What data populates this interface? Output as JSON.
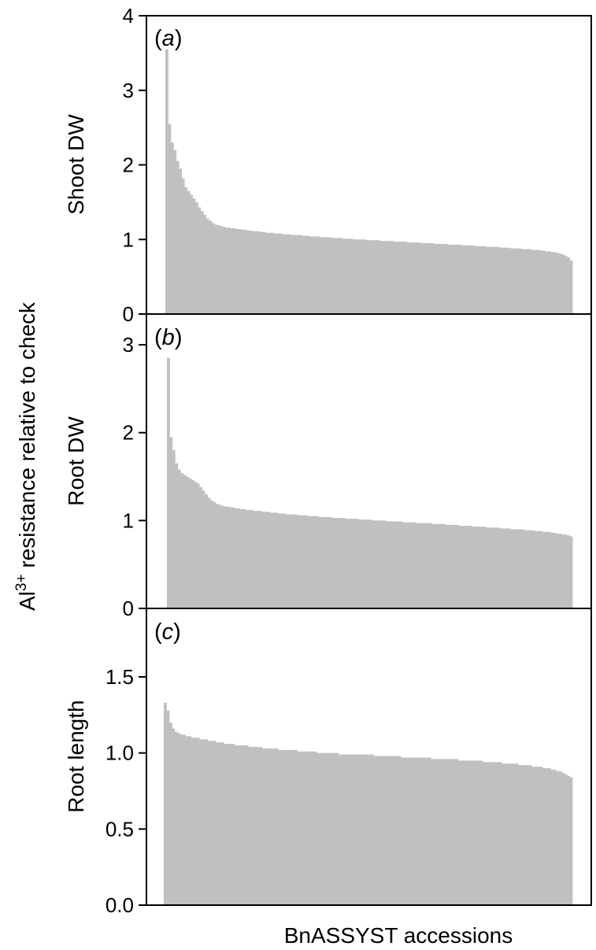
{
  "figure": {
    "shared_ylabel_main": "Al",
    "shared_ylabel_sup": "3+",
    "shared_ylabel_rest": " resistance relative to check",
    "shared_xlabel": "BnASSYST accessions"
  },
  "chart_data": [
    {
      "type": "bar",
      "panel_letter": "a",
      "ylabel": "Shoot DW",
      "ylim": [
        0,
        4
      ],
      "yticks": [
        "0",
        "1",
        "2",
        "3",
        "4"
      ],
      "ytick_values": [
        0,
        1,
        2,
        3,
        4
      ],
      "bar_color": "#c0c0c0",
      "n_accessions": 150,
      "values": [
        3.55,
        2.55,
        2.3,
        2.2,
        2.05,
        1.95,
        1.82,
        1.7,
        1.65,
        1.6,
        1.55,
        1.5,
        1.43,
        1.38,
        1.33,
        1.28,
        1.25,
        1.22,
        1.2,
        1.19,
        1.18,
        1.17,
        1.16,
        1.16,
        1.15,
        1.15,
        1.14,
        1.14,
        1.13,
        1.13,
        1.12,
        1.12,
        1.11,
        1.11,
        1.11,
        1.1,
        1.1,
        1.09,
        1.09,
        1.09,
        1.08,
        1.08,
        1.08,
        1.07,
        1.07,
        1.07,
        1.06,
        1.06,
        1.06,
        1.06,
        1.05,
        1.05,
        1.05,
        1.04,
        1.04,
        1.04,
        1.04,
        1.03,
        1.03,
        1.03,
        1.03,
        1.02,
        1.02,
        1.02,
        1.02,
        1.01,
        1.01,
        1.01,
        1.01,
        1.0,
        1.0,
        1.0,
        1.0,
        1.0,
        0.99,
        0.99,
        0.99,
        0.99,
        0.99,
        0.98,
        0.98,
        0.98,
        0.98,
        0.98,
        0.97,
        0.97,
        0.97,
        0.97,
        0.97,
        0.96,
        0.96,
        0.96,
        0.96,
        0.96,
        0.95,
        0.95,
        0.95,
        0.95,
        0.95,
        0.94,
        0.94,
        0.94,
        0.94,
        0.94,
        0.93,
        0.93,
        0.93,
        0.93,
        0.93,
        0.92,
        0.92,
        0.92,
        0.92,
        0.92,
        0.91,
        0.91,
        0.91,
        0.91,
        0.9,
        0.9,
        0.9,
        0.9,
        0.9,
        0.89,
        0.89,
        0.89,
        0.89,
        0.88,
        0.88,
        0.88,
        0.88,
        0.87,
        0.87,
        0.87,
        0.87,
        0.86,
        0.86,
        0.86,
        0.85,
        0.85,
        0.84,
        0.84,
        0.83,
        0.83,
        0.82,
        0.81,
        0.8,
        0.78,
        0.76,
        0.72
      ]
    },
    {
      "type": "bar",
      "panel_letter": "b",
      "ylabel": "Root DW",
      "ylim": [
        0,
        3.35
      ],
      "yticks": [
        "0",
        "1",
        "2",
        "3"
      ],
      "ytick_values": [
        0,
        1,
        2,
        3
      ],
      "bar_color": "#c0c0c0",
      "n_accessions": 150,
      "values": [
        2.85,
        1.95,
        1.8,
        1.65,
        1.58,
        1.54,
        1.52,
        1.5,
        1.48,
        1.46,
        1.44,
        1.42,
        1.38,
        1.34,
        1.3,
        1.26,
        1.23,
        1.21,
        1.19,
        1.18,
        1.17,
        1.16,
        1.16,
        1.15,
        1.15,
        1.14,
        1.14,
        1.13,
        1.13,
        1.12,
        1.12,
        1.12,
        1.11,
        1.11,
        1.11,
        1.1,
        1.1,
        1.1,
        1.09,
        1.09,
        1.09,
        1.08,
        1.08,
        1.08,
        1.07,
        1.07,
        1.07,
        1.07,
        1.06,
        1.06,
        1.06,
        1.06,
        1.05,
        1.05,
        1.05,
        1.05,
        1.04,
        1.04,
        1.04,
        1.04,
        1.04,
        1.03,
        1.03,
        1.03,
        1.03,
        1.03,
        1.02,
        1.02,
        1.02,
        1.02,
        1.02,
        1.01,
        1.01,
        1.01,
        1.01,
        1.01,
        1.0,
        1.0,
        1.0,
        1.0,
        1.0,
        0.99,
        0.99,
        0.99,
        0.99,
        0.99,
        0.99,
        0.98,
        0.98,
        0.98,
        0.98,
        0.98,
        0.97,
        0.97,
        0.97,
        0.97,
        0.97,
        0.97,
        0.96,
        0.96,
        0.96,
        0.96,
        0.96,
        0.95,
        0.95,
        0.95,
        0.95,
        0.95,
        0.94,
        0.94,
        0.94,
        0.94,
        0.94,
        0.93,
        0.93,
        0.93,
        0.93,
        0.93,
        0.92,
        0.92,
        0.92,
        0.92,
        0.92,
        0.91,
        0.91,
        0.91,
        0.91,
        0.9,
        0.9,
        0.9,
        0.9,
        0.9,
        0.89,
        0.89,
        0.89,
        0.89,
        0.88,
        0.88,
        0.88,
        0.87,
        0.87,
        0.87,
        0.86,
        0.86,
        0.85,
        0.85,
        0.84,
        0.84,
        0.83,
        0.82
      ]
    },
    {
      "type": "bar",
      "panel_letter": "c",
      "ylabel": "Root length",
      "ylim": [
        0,
        1.95
      ],
      "yticks": [
        "0.0",
        "0.5",
        "1.0",
        "1.5"
      ],
      "ytick_values": [
        0,
        0.5,
        1.0,
        1.5
      ],
      "bar_color": "#c0c0c0",
      "n_accessions": 150,
      "values": [
        1.33,
        1.28,
        1.2,
        1.16,
        1.14,
        1.13,
        1.12,
        1.12,
        1.11,
        1.11,
        1.1,
        1.1,
        1.1,
        1.09,
        1.09,
        1.09,
        1.08,
        1.08,
        1.08,
        1.07,
        1.07,
        1.07,
        1.06,
        1.06,
        1.06,
        1.06,
        1.05,
        1.05,
        1.05,
        1.05,
        1.05,
        1.04,
        1.04,
        1.04,
        1.04,
        1.04,
        1.03,
        1.03,
        1.03,
        1.03,
        1.03,
        1.03,
        1.02,
        1.02,
        1.02,
        1.02,
        1.02,
        1.02,
        1.02,
        1.01,
        1.01,
        1.01,
        1.01,
        1.01,
        1.01,
        1.01,
        1.0,
        1.0,
        1.0,
        1.0,
        1.0,
        1.0,
        1.0,
        1.0,
        0.99,
        0.99,
        0.99,
        0.99,
        0.99,
        0.99,
        0.99,
        0.99,
        0.99,
        0.99,
        0.99,
        0.99,
        0.99,
        0.98,
        0.98,
        0.98,
        0.98,
        0.98,
        0.98,
        0.98,
        0.98,
        0.98,
        0.98,
        0.97,
        0.97,
        0.97,
        0.97,
        0.97,
        0.97,
        0.97,
        0.97,
        0.97,
        0.97,
        0.97,
        0.96,
        0.96,
        0.96,
        0.96,
        0.96,
        0.96,
        0.96,
        0.96,
        0.96,
        0.96,
        0.95,
        0.95,
        0.95,
        0.95,
        0.95,
        0.95,
        0.95,
        0.95,
        0.95,
        0.94,
        0.94,
        0.94,
        0.94,
        0.94,
        0.94,
        0.94,
        0.93,
        0.93,
        0.93,
        0.93,
        0.93,
        0.93,
        0.92,
        0.92,
        0.92,
        0.92,
        0.92,
        0.91,
        0.91,
        0.91,
        0.91,
        0.9,
        0.9,
        0.9,
        0.89,
        0.89,
        0.88,
        0.88,
        0.87,
        0.86,
        0.85,
        0.84
      ]
    }
  ]
}
